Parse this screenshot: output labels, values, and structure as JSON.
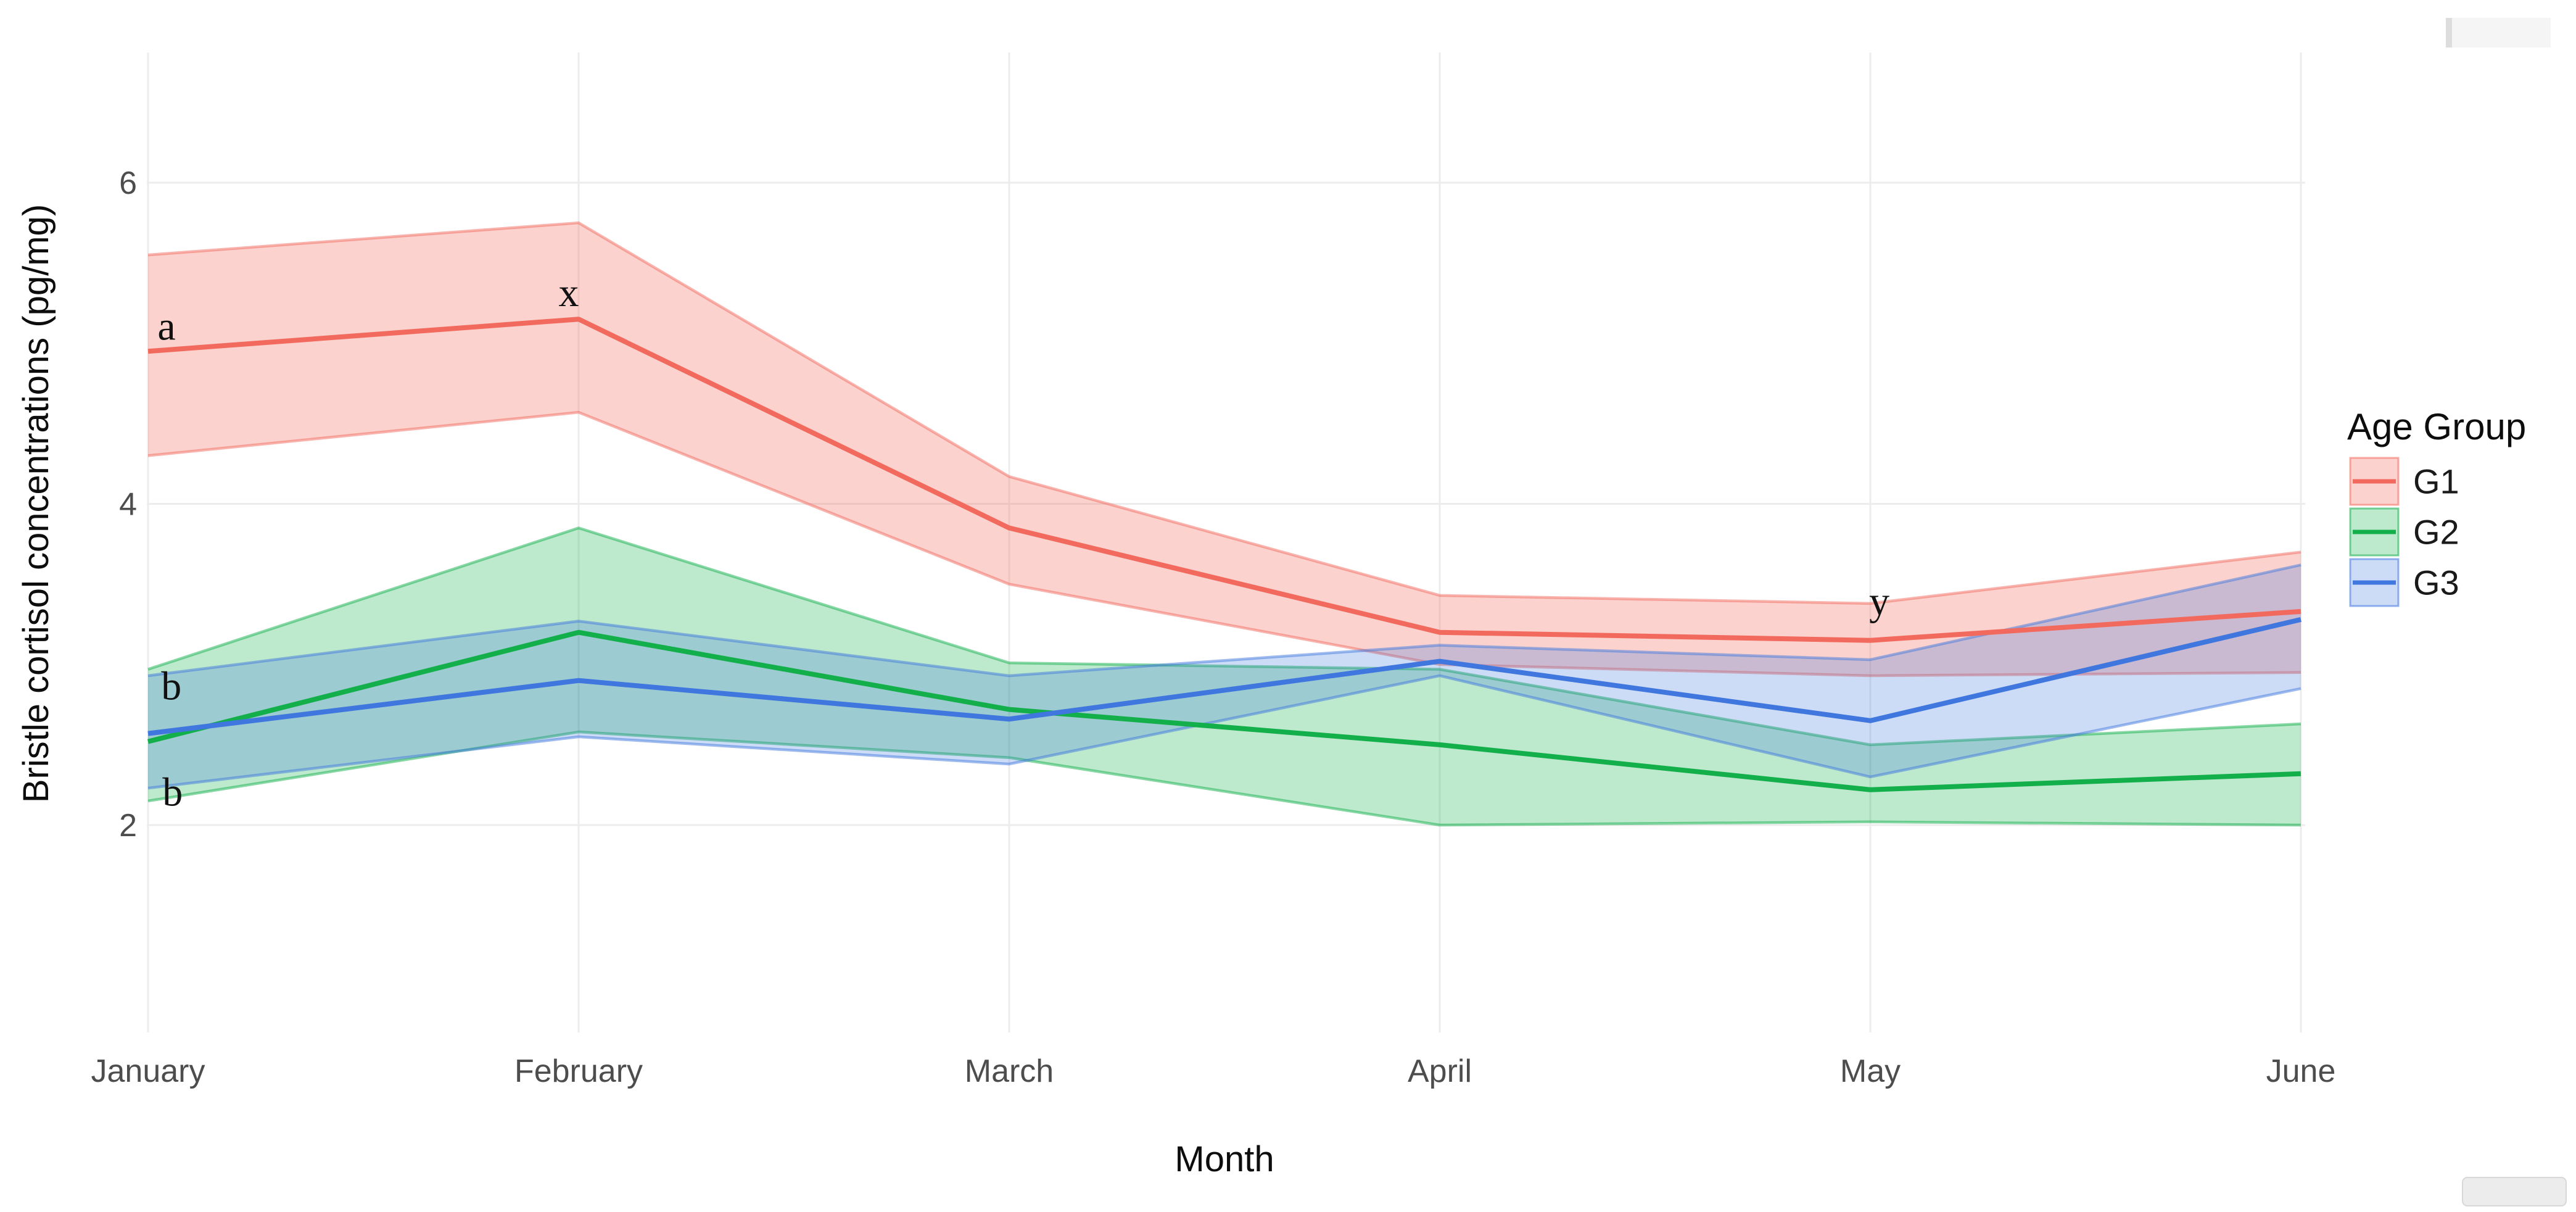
{
  "chart_data": {
    "type": "line",
    "title": "",
    "xlabel": "Month",
    "ylabel": "Bristle cortisol concentrations (pg/mg)",
    "categories": [
      "January",
      "February",
      "March",
      "April",
      "May",
      "June"
    ],
    "y_ticks": [
      2,
      4,
      6
    ],
    "ylim_visible": [
      0.7,
      6.8
    ],
    "grid": true,
    "legend": {
      "title": "Age Group",
      "position": "right"
    },
    "series": [
      {
        "name": "G1",
        "color": "#f2695d",
        "fill_opacity": 0.3,
        "values": [
          4.95,
          5.15,
          3.85,
          3.2,
          3.15,
          3.33
        ],
        "ribbon_lower": [
          4.3,
          4.57,
          3.5,
          3.0,
          2.93,
          2.95
        ],
        "ribbon_upper": [
          5.55,
          5.75,
          4.17,
          3.43,
          3.38,
          3.7
        ]
      },
      {
        "name": "G2",
        "color": "#12af4b",
        "fill_opacity": 0.28,
        "values": [
          2.52,
          3.2,
          2.72,
          2.5,
          2.22,
          2.32
        ],
        "ribbon_lower": [
          2.15,
          2.58,
          2.42,
          2.0,
          2.02,
          2.0
        ],
        "ribbon_upper": [
          2.97,
          3.85,
          3.01,
          2.97,
          2.5,
          2.63
        ]
      },
      {
        "name": "G3",
        "color": "#3f77de",
        "fill_opacity": 0.26,
        "values": [
          2.57,
          2.9,
          2.66,
          3.02,
          2.65,
          3.28
        ],
        "ribbon_lower": [
          2.23,
          2.55,
          2.38,
          2.93,
          2.3,
          2.85
        ],
        "ribbon_upper": [
          2.93,
          3.27,
          2.93,
          3.12,
          3.03,
          3.62
        ]
      }
    ],
    "annotations": [
      {
        "text": "a",
        "x": 0.043,
        "y": 5.11
      },
      {
        "text": "x",
        "x": 0.977,
        "y": 5.32
      },
      {
        "text": "b",
        "x": 0.054,
        "y": 2.87
      },
      {
        "text": "b",
        "x": 0.057,
        "y": 2.21
      },
      {
        "text": "y",
        "x": 4.021,
        "y": 3.4
      }
    ]
  }
}
